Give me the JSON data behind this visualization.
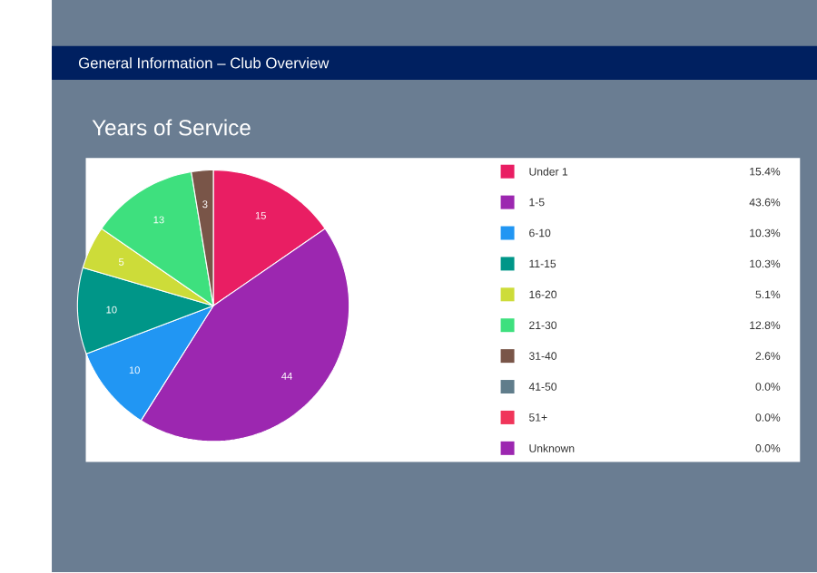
{
  "chart_data": {
    "type": "pie",
    "title": "General Information – Club Overview",
    "subtitle": "Years of Service",
    "categories": [
      "Under 1",
      "1-5",
      "6-10",
      "11-15",
      "16-20",
      "21-30",
      "31-40",
      "41-50",
      "51+",
      "Unknown"
    ],
    "values": [
      15.4,
      43.6,
      10.3,
      10.3,
      5.1,
      12.8,
      2.6,
      0.0,
      0.0,
      0.0
    ],
    "value_labels": [
      "15",
      "44",
      "10",
      "10",
      "5",
      "13",
      "3",
      null,
      null,
      null
    ],
    "colors": [
      "#e91e63",
      "#9c27b0",
      "#2196f3",
      "#009688",
      "#cddc39",
      "#3ee07e",
      "#795548",
      "#607d8b",
      "#f0355a",
      "#9c27b0"
    ],
    "annotations": [
      "15.4%",
      "43.6%",
      "10.3%",
      "10.3%",
      "5.1%",
      "12.8%",
      "2.6%",
      "0.0%",
      "0.0%",
      "0.0%"
    ],
    "legend": "right"
  }
}
